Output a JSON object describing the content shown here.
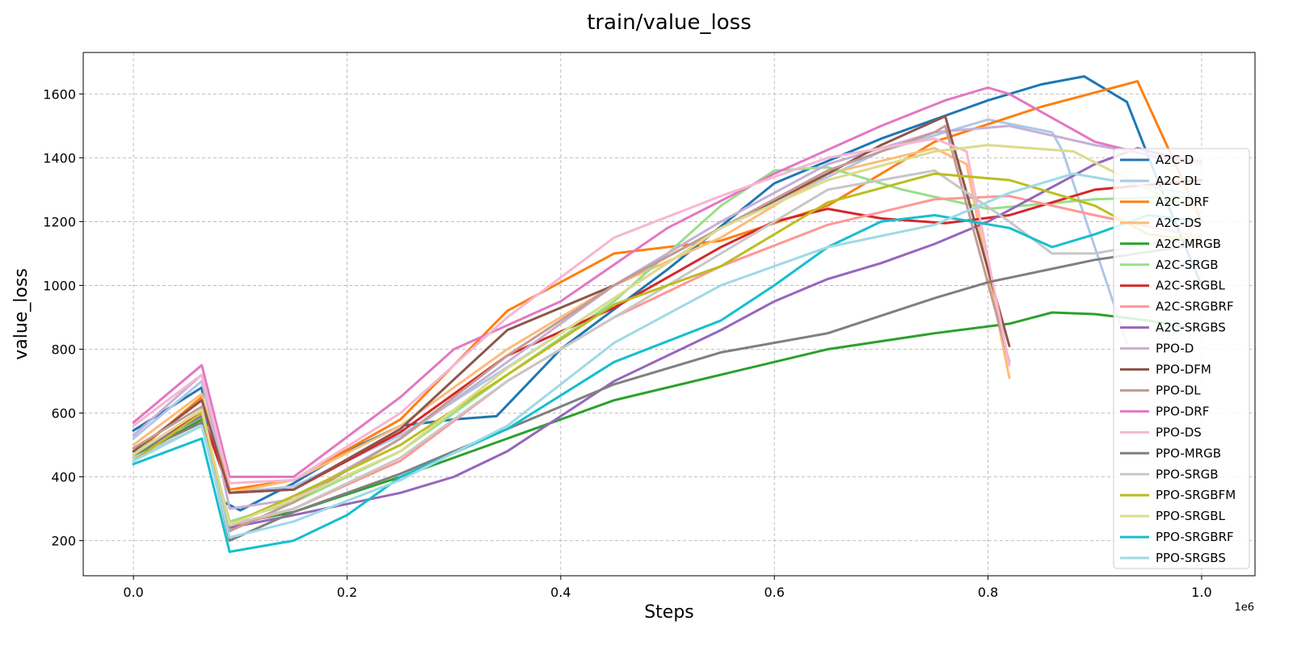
{
  "chart_data": {
    "type": "line",
    "title": "train/value_loss",
    "xlabel": "Steps",
    "ylabel": "value_loss",
    "x_offset_label": "1e6",
    "xlim": [
      -0.047,
      1.05
    ],
    "ylim": [
      90,
      1730
    ],
    "x_ticks": [
      0.0,
      0.2,
      0.4,
      0.6,
      0.8,
      1.0
    ],
    "x_tick_labels": [
      "0.0",
      "0.2",
      "0.4",
      "0.6",
      "0.8",
      "1.0"
    ],
    "y_ticks": [
      200,
      400,
      600,
      800,
      1000,
      1200,
      1400,
      1600
    ],
    "y_tick_labels": [
      "200",
      "400",
      "600",
      "800",
      "1000",
      "1200",
      "1400",
      "1600"
    ],
    "grid": true,
    "legend_position": "right",
    "series": [
      {
        "name": "A2C-D",
        "color": "#1f77b4",
        "points": [
          [
            0,
            545
          ],
          [
            0.064,
            680
          ],
          [
            0.072,
            470
          ],
          [
            0.085,
            320
          ],
          [
            0.1,
            295
          ],
          [
            0.15,
            380
          ],
          [
            0.2,
            480
          ],
          [
            0.25,
            560
          ],
          [
            0.3,
            580
          ],
          [
            0.34,
            590
          ],
          [
            0.4,
            800
          ],
          [
            0.5,
            1050
          ],
          [
            0.6,
            1320
          ],
          [
            0.7,
            1460
          ],
          [
            0.8,
            1580
          ],
          [
            0.85,
            1630
          ],
          [
            0.89,
            1655
          ],
          [
            0.93,
            1575
          ],
          [
            0.96,
            1320
          ],
          [
            1.0,
            1000
          ]
        ]
      },
      {
        "name": "A2C-DL",
        "color": "#aec7e8",
        "points": [
          [
            0,
            520
          ],
          [
            0.064,
            700
          ],
          [
            0.09,
            350
          ],
          [
            0.15,
            370
          ],
          [
            0.25,
            530
          ],
          [
            0.4,
            850
          ],
          [
            0.55,
            1180
          ],
          [
            0.7,
            1420
          ],
          [
            0.8,
            1520
          ],
          [
            0.86,
            1480
          ],
          [
            0.87,
            1420
          ],
          [
            0.93,
            820
          ]
        ]
      },
      {
        "name": "A2C-DRF",
        "color": "#ff7f0e",
        "points": [
          [
            0,
            470
          ],
          [
            0.064,
            650
          ],
          [
            0.09,
            360
          ],
          [
            0.15,
            390
          ],
          [
            0.25,
            580
          ],
          [
            0.35,
            920
          ],
          [
            0.45,
            1100
          ],
          [
            0.55,
            1140
          ],
          [
            0.65,
            1250
          ],
          [
            0.75,
            1450
          ],
          [
            0.85,
            1560
          ],
          [
            0.94,
            1640
          ],
          [
            0.97,
            1420
          ],
          [
            1.0,
            1200
          ]
        ]
      },
      {
        "name": "A2C-DS",
        "color": "#ffbb78",
        "points": [
          [
            0,
            500
          ],
          [
            0.064,
            660
          ],
          [
            0.09,
            350
          ],
          [
            0.15,
            390
          ],
          [
            0.25,
            560
          ],
          [
            0.35,
            800
          ],
          [
            0.45,
            1000
          ],
          [
            0.55,
            1150
          ],
          [
            0.65,
            1350
          ],
          [
            0.75,
            1430
          ],
          [
            0.78,
            1380
          ],
          [
            0.82,
            710
          ]
        ]
      },
      {
        "name": "A2C-MRGB",
        "color": "#2ca02c",
        "points": [
          [
            0,
            460
          ],
          [
            0.064,
            580
          ],
          [
            0.09,
            250
          ],
          [
            0.15,
            290
          ],
          [
            0.25,
            400
          ],
          [
            0.35,
            520
          ],
          [
            0.45,
            640
          ],
          [
            0.55,
            720
          ],
          [
            0.65,
            800
          ],
          [
            0.75,
            850
          ],
          [
            0.82,
            880
          ],
          [
            0.86,
            915
          ],
          [
            0.9,
            910
          ],
          [
            0.95,
            890
          ],
          [
            1.0,
            860
          ]
        ]
      },
      {
        "name": "A2C-SRGB",
        "color": "#98df8a",
        "points": [
          [
            0,
            480
          ],
          [
            0.064,
            590
          ],
          [
            0.09,
            260
          ],
          [
            0.15,
            320
          ],
          [
            0.25,
            480
          ],
          [
            0.35,
            720
          ],
          [
            0.45,
            950
          ],
          [
            0.55,
            1250
          ],
          [
            0.6,
            1360
          ],
          [
            0.65,
            1370
          ],
          [
            0.72,
            1300
          ],
          [
            0.8,
            1240
          ],
          [
            0.9,
            1270
          ],
          [
            1.0,
            1280
          ]
        ]
      },
      {
        "name": "A2C-SRGBL",
        "color": "#d62728",
        "points": [
          [
            0,
            470
          ],
          [
            0.064,
            600
          ],
          [
            0.09,
            350
          ],
          [
            0.15,
            360
          ],
          [
            0.25,
            540
          ],
          [
            0.35,
            780
          ],
          [
            0.45,
            930
          ],
          [
            0.55,
            1120
          ],
          [
            0.6,
            1200
          ],
          [
            0.65,
            1240
          ],
          [
            0.7,
            1210
          ],
          [
            0.76,
            1195
          ],
          [
            0.82,
            1220
          ],
          [
            0.9,
            1300
          ],
          [
            1.0,
            1330
          ]
        ]
      },
      {
        "name": "A2C-SRGBRF",
        "color": "#ff9896",
        "points": [
          [
            0,
            470
          ],
          [
            0.064,
            610
          ],
          [
            0.09,
            240
          ],
          [
            0.15,
            300
          ],
          [
            0.25,
            450
          ],
          [
            0.35,
            700
          ],
          [
            0.45,
            900
          ],
          [
            0.55,
            1060
          ],
          [
            0.65,
            1190
          ],
          [
            0.75,
            1270
          ],
          [
            0.82,
            1280
          ],
          [
            0.9,
            1220
          ],
          [
            1.0,
            1150
          ]
        ]
      },
      {
        "name": "A2C-SRGBS",
        "color": "#9467bd",
        "points": [
          [
            0,
            470
          ],
          [
            0.064,
            590
          ],
          [
            0.09,
            240
          ],
          [
            0.15,
            280
          ],
          [
            0.25,
            350
          ],
          [
            0.3,
            400
          ],
          [
            0.35,
            480
          ],
          [
            0.45,
            700
          ],
          [
            0.55,
            860
          ],
          [
            0.6,
            950
          ],
          [
            0.65,
            1020
          ],
          [
            0.7,
            1070
          ],
          [
            0.75,
            1130
          ],
          [
            0.8,
            1200
          ],
          [
            0.9,
            1380
          ],
          [
            0.94,
            1430
          ],
          [
            1.0,
            1380
          ]
        ]
      },
      {
        "name": "PPO-D",
        "color": "#c5b0d5",
        "points": [
          [
            0,
            530
          ],
          [
            0.064,
            720
          ],
          [
            0.09,
            300
          ],
          [
            0.15,
            330
          ],
          [
            0.25,
            520
          ],
          [
            0.35,
            760
          ],
          [
            0.45,
            1000
          ],
          [
            0.55,
            1200
          ],
          [
            0.65,
            1380
          ],
          [
            0.75,
            1480
          ],
          [
            0.82,
            1500
          ],
          [
            0.9,
            1440
          ],
          [
            1.0,
            1380
          ]
        ]
      },
      {
        "name": "PPO-DFM",
        "color": "#8c564b",
        "points": [
          [
            0,
            480
          ],
          [
            0.064,
            640
          ],
          [
            0.09,
            350
          ],
          [
            0.15,
            360
          ],
          [
            0.25,
            550
          ],
          [
            0.35,
            860
          ],
          [
            0.45,
            1000
          ],
          [
            0.55,
            1180
          ],
          [
            0.65,
            1350
          ],
          [
            0.7,
            1440
          ],
          [
            0.76,
            1530
          ],
          [
            0.82,
            810
          ]
        ]
      },
      {
        "name": "PPO-DL",
        "color": "#c49c94",
        "points": [
          [
            0,
            490
          ],
          [
            0.064,
            620
          ],
          [
            0.09,
            230
          ],
          [
            0.15,
            320
          ],
          [
            0.25,
            520
          ],
          [
            0.35,
            780
          ],
          [
            0.45,
            1000
          ],
          [
            0.55,
            1180
          ],
          [
            0.65,
            1360
          ],
          [
            0.75,
            1480
          ],
          [
            0.76,
            1500
          ],
          [
            0.82,
            760
          ]
        ]
      },
      {
        "name": "PPO-DRF",
        "color": "#e377c2",
        "points": [
          [
            0,
            570
          ],
          [
            0.064,
            750
          ],
          [
            0.09,
            400
          ],
          [
            0.15,
            400
          ],
          [
            0.25,
            650
          ],
          [
            0.3,
            800
          ],
          [
            0.4,
            950
          ],
          [
            0.5,
            1180
          ],
          [
            0.6,
            1350
          ],
          [
            0.7,
            1500
          ],
          [
            0.76,
            1580
          ],
          [
            0.8,
            1620
          ],
          [
            0.82,
            1600
          ],
          [
            0.9,
            1450
          ],
          [
            0.96,
            1400
          ],
          [
            1.0,
            1390
          ]
        ]
      },
      {
        "name": "PPO-DS",
        "color": "#f7b6d2",
        "points": [
          [
            0,
            560
          ],
          [
            0.064,
            720
          ],
          [
            0.09,
            380
          ],
          [
            0.15,
            390
          ],
          [
            0.25,
            600
          ],
          [
            0.35,
            900
          ],
          [
            0.45,
            1150
          ],
          [
            0.55,
            1280
          ],
          [
            0.65,
            1400
          ],
          [
            0.75,
            1460
          ],
          [
            0.78,
            1420
          ],
          [
            0.82,
            750
          ]
        ]
      },
      {
        "name": "PPO-MRGB",
        "color": "#7f7f7f",
        "points": [
          [
            0,
            470
          ],
          [
            0.064,
            570
          ],
          [
            0.09,
            200
          ],
          [
            0.15,
            290
          ],
          [
            0.25,
            410
          ],
          [
            0.35,
            550
          ],
          [
            0.45,
            690
          ],
          [
            0.55,
            790
          ],
          [
            0.65,
            850
          ],
          [
            0.75,
            960
          ],
          [
            0.8,
            1010
          ],
          [
            0.9,
            1080
          ],
          [
            1.0,
            1130
          ]
        ]
      },
      {
        "name": "PPO-SRGB",
        "color": "#c7c7c7",
        "points": [
          [
            0,
            460
          ],
          [
            0.064,
            560
          ],
          [
            0.09,
            250
          ],
          [
            0.15,
            300
          ],
          [
            0.25,
            460
          ],
          [
            0.35,
            700
          ],
          [
            0.45,
            900
          ],
          [
            0.55,
            1100
          ],
          [
            0.65,
            1300
          ],
          [
            0.75,
            1360
          ],
          [
            0.82,
            1200
          ],
          [
            0.86,
            1100
          ],
          [
            0.9,
            1100
          ],
          [
            1.0,
            1160
          ]
        ]
      },
      {
        "name": "PPO-SRGBFM",
        "color": "#bcbd22",
        "points": [
          [
            0,
            450
          ],
          [
            0.064,
            600
          ],
          [
            0.09,
            250
          ],
          [
            0.15,
            340
          ],
          [
            0.25,
            500
          ],
          [
            0.35,
            720
          ],
          [
            0.45,
            940
          ],
          [
            0.55,
            1060
          ],
          [
            0.65,
            1260
          ],
          [
            0.75,
            1350
          ],
          [
            0.82,
            1330
          ],
          [
            0.9,
            1250
          ],
          [
            0.95,
            1160
          ],
          [
            1.0,
            1140
          ]
        ]
      },
      {
        "name": "PPO-SRGBL",
        "color": "#dbdb8d",
        "points": [
          [
            0,
            470
          ],
          [
            0.064,
            610
          ],
          [
            0.09,
            250
          ],
          [
            0.15,
            330
          ],
          [
            0.25,
            480
          ],
          [
            0.35,
            740
          ],
          [
            0.45,
            960
          ],
          [
            0.55,
            1180
          ],
          [
            0.65,
            1330
          ],
          [
            0.75,
            1420
          ],
          [
            0.8,
            1440
          ],
          [
            0.88,
            1420
          ],
          [
            0.95,
            1300
          ],
          [
            1.0,
            1230
          ]
        ]
      },
      {
        "name": "PPO-SRGBRF",
        "color": "#17becf",
        "points": [
          [
            0,
            440
          ],
          [
            0.064,
            520
          ],
          [
            0.09,
            165
          ],
          [
            0.15,
            200
          ],
          [
            0.2,
            280
          ],
          [
            0.25,
            400
          ],
          [
            0.35,
            550
          ],
          [
            0.45,
            760
          ],
          [
            0.55,
            890
          ],
          [
            0.6,
            1000
          ],
          [
            0.65,
            1120
          ],
          [
            0.7,
            1200
          ],
          [
            0.75,
            1220
          ],
          [
            0.82,
            1180
          ],
          [
            0.86,
            1120
          ],
          [
            0.9,
            1160
          ],
          [
            0.95,
            1220
          ],
          [
            1.0,
            1200
          ]
        ]
      },
      {
        "name": "PPO-SRGBS",
        "color": "#9edae5",
        "points": [
          [
            0,
            450
          ],
          [
            0.064,
            560
          ],
          [
            0.09,
            210
          ],
          [
            0.15,
            260
          ],
          [
            0.25,
            390
          ],
          [
            0.35,
            560
          ],
          [
            0.45,
            820
          ],
          [
            0.55,
            1000
          ],
          [
            0.65,
            1120
          ],
          [
            0.75,
            1190
          ],
          [
            0.82,
            1290
          ],
          [
            0.88,
            1350
          ],
          [
            0.95,
            1310
          ],
          [
            1.0,
            1280
          ]
        ]
      }
    ]
  }
}
